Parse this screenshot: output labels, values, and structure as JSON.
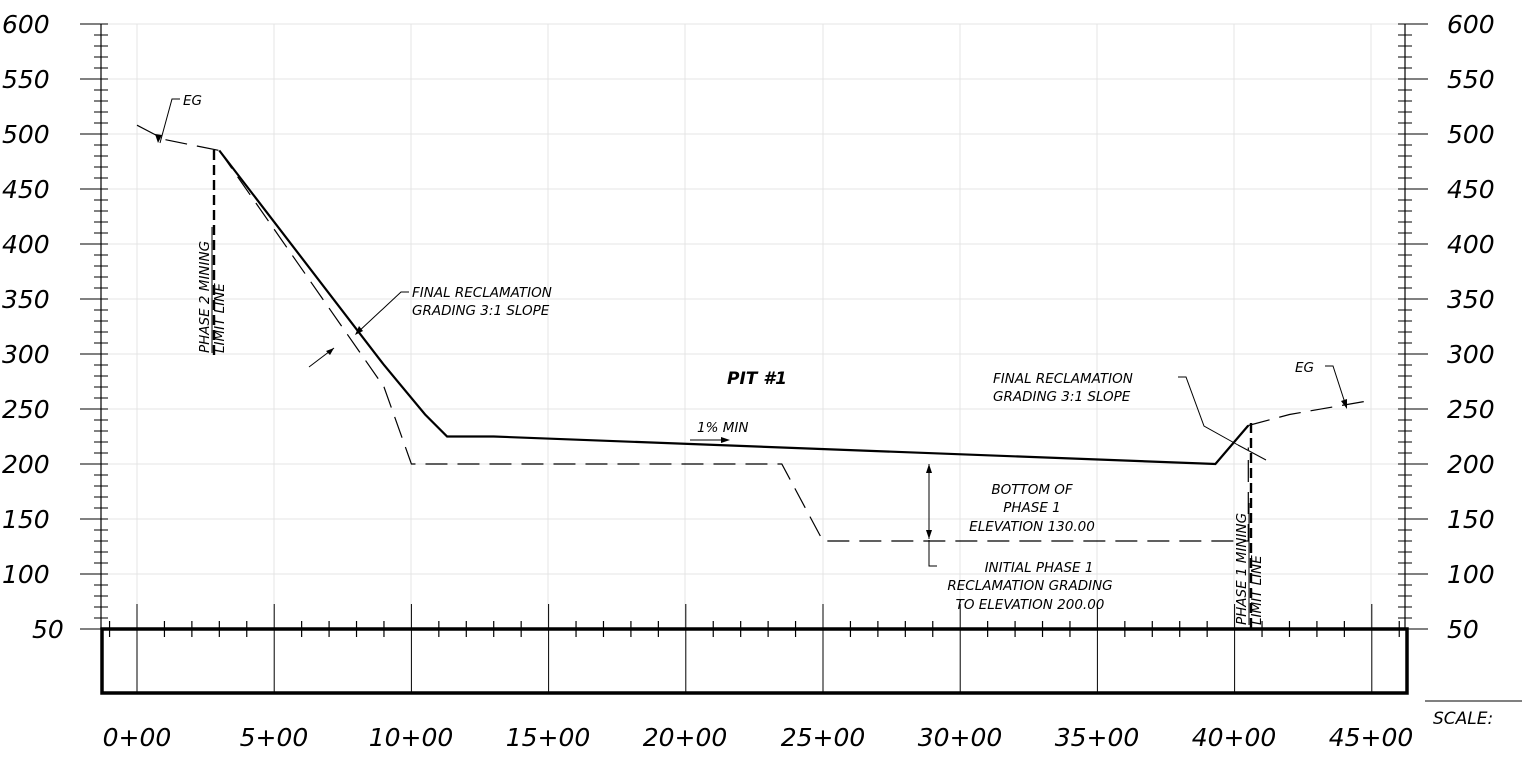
{
  "elevation_axis": {
    "labels": [
      "600",
      "550",
      "500",
      "450",
      "400",
      "350",
      "300",
      "250",
      "200",
      "150",
      "100",
      "50"
    ]
  },
  "station_axis": {
    "labels": [
      "0+00",
      "5+00",
      "10+00",
      "15+00",
      "20+00",
      "25+00",
      "30+00",
      "35+00",
      "40+00",
      "45+00"
    ]
  },
  "scale_label": "SCALE:",
  "labels": {
    "eg_left": "EG",
    "eg_right": "EG",
    "phase2_line1": "PHASE 2 MINING",
    "phase2_line2": "LIMIT LINE",
    "final_left_1": "FINAL RECLAMATION",
    "final_left_2": "GRADING 3:1 SLOPE",
    "pit": "PIT #1",
    "min_slope": "1% MIN",
    "final_right_1": "FINAL RECLAMATION",
    "final_right_2": "GRADING 3:1 SLOPE",
    "bottom_1": "BOTTOM OF",
    "bottom_2": "PHASE 1",
    "bottom_3": "ELEVATION 130.00",
    "initial_1": "INITIAL PHASE 1",
    "initial_2": "RECLAMATION GRADING",
    "initial_3": "TO ELEVATION 200.00",
    "phase1_line1": "PHASE 1 MINING",
    "phase1_line2": "LIMIT LINE"
  },
  "profiles": {
    "final_reclamation": [
      [
        3,
        485
      ],
      [
        9,
        290
      ],
      [
        10.5,
        245
      ],
      [
        11.3,
        225
      ],
      [
        13,
        225
      ],
      [
        39.3,
        200
      ],
      [
        40.5,
        235
      ]
    ],
    "initial_reclamation": [
      [
        3,
        485
      ],
      [
        9,
        270
      ],
      [
        10,
        200
      ],
      [
        23.5,
        200
      ],
      [
        25,
        130
      ],
      [
        40.5,
        130
      ],
      [
        40.5,
        215
      ]
    ],
    "existing_ground_left": [
      [
        0,
        508
      ],
      [
        1,
        495
      ],
      [
        3,
        485
      ]
    ],
    "existing_ground_right": [
      [
        40.5,
        235
      ],
      [
        42,
        245
      ],
      [
        45,
        258
      ]
    ]
  }
}
